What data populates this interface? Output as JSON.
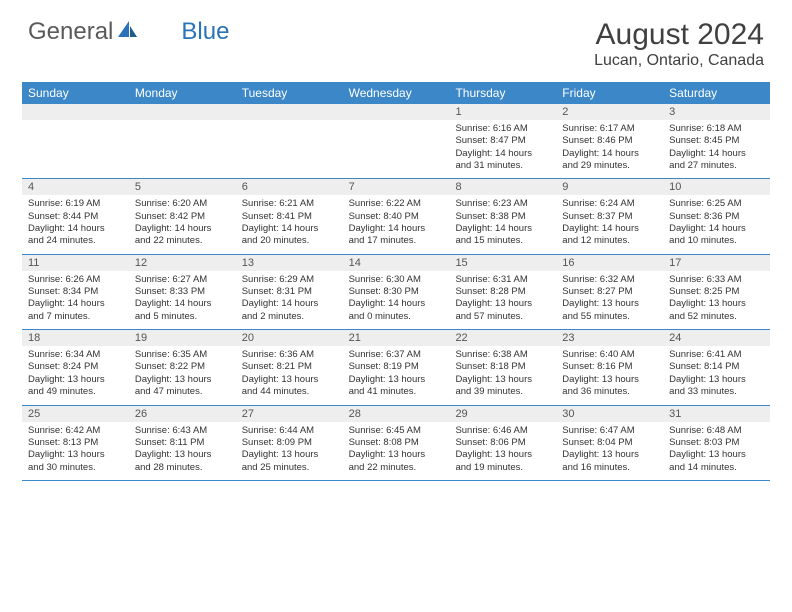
{
  "brand": {
    "part1": "General",
    "part2": "Blue"
  },
  "title": "August 2024",
  "location": "Lucan, Ontario, Canada",
  "colors": {
    "header_bg": "#3b87c8",
    "header_text": "#ffffff",
    "daynum_bg": "#eeeeee",
    "border": "#3b87c8",
    "text": "#333333",
    "title_text": "#404040",
    "logo_gray": "#5a5a5a",
    "logo_blue": "#2a73b8"
  },
  "day_names": [
    "Sunday",
    "Monday",
    "Tuesday",
    "Wednesday",
    "Thursday",
    "Friday",
    "Saturday"
  ],
  "weeks": [
    {
      "nums": [
        "",
        "",
        "",
        "",
        "1",
        "2",
        "3"
      ],
      "cells": [
        null,
        null,
        null,
        null,
        {
          "sunrise": "6:16 AM",
          "sunset": "8:47 PM",
          "daylight": "14 hours and 31 minutes."
        },
        {
          "sunrise": "6:17 AM",
          "sunset": "8:46 PM",
          "daylight": "14 hours and 29 minutes."
        },
        {
          "sunrise": "6:18 AM",
          "sunset": "8:45 PM",
          "daylight": "14 hours and 27 minutes."
        }
      ]
    },
    {
      "nums": [
        "4",
        "5",
        "6",
        "7",
        "8",
        "9",
        "10"
      ],
      "cells": [
        {
          "sunrise": "6:19 AM",
          "sunset": "8:44 PM",
          "daylight": "14 hours and 24 minutes."
        },
        {
          "sunrise": "6:20 AM",
          "sunset": "8:42 PM",
          "daylight": "14 hours and 22 minutes."
        },
        {
          "sunrise": "6:21 AM",
          "sunset": "8:41 PM",
          "daylight": "14 hours and 20 minutes."
        },
        {
          "sunrise": "6:22 AM",
          "sunset": "8:40 PM",
          "daylight": "14 hours and 17 minutes."
        },
        {
          "sunrise": "6:23 AM",
          "sunset": "8:38 PM",
          "daylight": "14 hours and 15 minutes."
        },
        {
          "sunrise": "6:24 AM",
          "sunset": "8:37 PM",
          "daylight": "14 hours and 12 minutes."
        },
        {
          "sunrise": "6:25 AM",
          "sunset": "8:36 PM",
          "daylight": "14 hours and 10 minutes."
        }
      ]
    },
    {
      "nums": [
        "11",
        "12",
        "13",
        "14",
        "15",
        "16",
        "17"
      ],
      "cells": [
        {
          "sunrise": "6:26 AM",
          "sunset": "8:34 PM",
          "daylight": "14 hours and 7 minutes."
        },
        {
          "sunrise": "6:27 AM",
          "sunset": "8:33 PM",
          "daylight": "14 hours and 5 minutes."
        },
        {
          "sunrise": "6:29 AM",
          "sunset": "8:31 PM",
          "daylight": "14 hours and 2 minutes."
        },
        {
          "sunrise": "6:30 AM",
          "sunset": "8:30 PM",
          "daylight": "14 hours and 0 minutes."
        },
        {
          "sunrise": "6:31 AM",
          "sunset": "8:28 PM",
          "daylight": "13 hours and 57 minutes."
        },
        {
          "sunrise": "6:32 AM",
          "sunset": "8:27 PM",
          "daylight": "13 hours and 55 minutes."
        },
        {
          "sunrise": "6:33 AM",
          "sunset": "8:25 PM",
          "daylight": "13 hours and 52 minutes."
        }
      ]
    },
    {
      "nums": [
        "18",
        "19",
        "20",
        "21",
        "22",
        "23",
        "24"
      ],
      "cells": [
        {
          "sunrise": "6:34 AM",
          "sunset": "8:24 PM",
          "daylight": "13 hours and 49 minutes."
        },
        {
          "sunrise": "6:35 AM",
          "sunset": "8:22 PM",
          "daylight": "13 hours and 47 minutes."
        },
        {
          "sunrise": "6:36 AM",
          "sunset": "8:21 PM",
          "daylight": "13 hours and 44 minutes."
        },
        {
          "sunrise": "6:37 AM",
          "sunset": "8:19 PM",
          "daylight": "13 hours and 41 minutes."
        },
        {
          "sunrise": "6:38 AM",
          "sunset": "8:18 PM",
          "daylight": "13 hours and 39 minutes."
        },
        {
          "sunrise": "6:40 AM",
          "sunset": "8:16 PM",
          "daylight": "13 hours and 36 minutes."
        },
        {
          "sunrise": "6:41 AM",
          "sunset": "8:14 PM",
          "daylight": "13 hours and 33 minutes."
        }
      ]
    },
    {
      "nums": [
        "25",
        "26",
        "27",
        "28",
        "29",
        "30",
        "31"
      ],
      "cells": [
        {
          "sunrise": "6:42 AM",
          "sunset": "8:13 PM",
          "daylight": "13 hours and 30 minutes."
        },
        {
          "sunrise": "6:43 AM",
          "sunset": "8:11 PM",
          "daylight": "13 hours and 28 minutes."
        },
        {
          "sunrise": "6:44 AM",
          "sunset": "8:09 PM",
          "daylight": "13 hours and 25 minutes."
        },
        {
          "sunrise": "6:45 AM",
          "sunset": "8:08 PM",
          "daylight": "13 hours and 22 minutes."
        },
        {
          "sunrise": "6:46 AM",
          "sunset": "8:06 PM",
          "daylight": "13 hours and 19 minutes."
        },
        {
          "sunrise": "6:47 AM",
          "sunset": "8:04 PM",
          "daylight": "13 hours and 16 minutes."
        },
        {
          "sunrise": "6:48 AM",
          "sunset": "8:03 PM",
          "daylight": "13 hours and 14 minutes."
        }
      ]
    }
  ],
  "labels": {
    "sunrise": "Sunrise: ",
    "sunset": "Sunset: ",
    "daylight": "Daylight: "
  }
}
